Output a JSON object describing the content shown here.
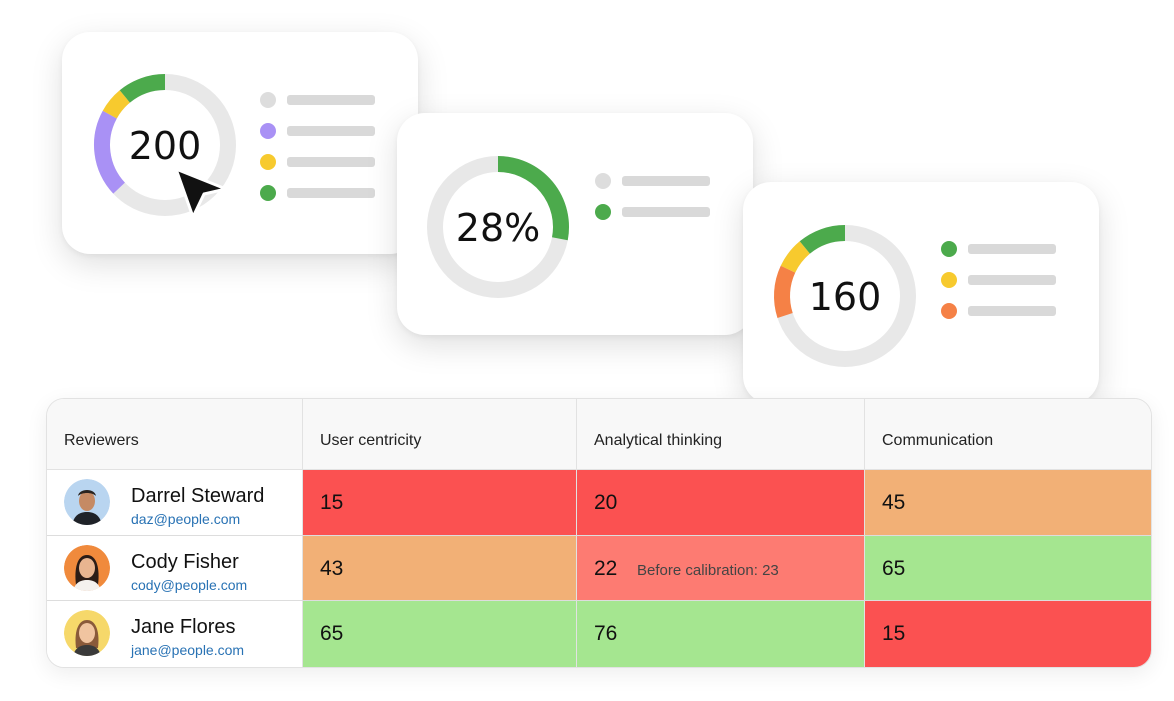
{
  "colors": {
    "track": "#e8e8e8",
    "green": "#4caa4c",
    "yellow": "#f7ca2e",
    "purple": "#a991f5",
    "orange": "#f58146",
    "legend_gray": "#d9d9d9",
    "legend_dot_gray": "#dddddd",
    "score_red": "#fb5151",
    "score_pink": "#fd7b72",
    "score_orange": "#f2b076",
    "score_green": "#a5e690",
    "email_blue": "#2872b4"
  },
  "cursor_icon": "arrow-cursor-icon",
  "cards": [
    {
      "value": "200",
      "segments": [
        {
          "color": "purple",
          "fraction": 0.2
        },
        {
          "color": "yellow",
          "fraction": 0.06
        },
        {
          "color": "green",
          "fraction": 0.11
        }
      ],
      "legend": [
        "gray",
        "purple",
        "yellow",
        "green"
      ]
    },
    {
      "value": "28%",
      "segments": [
        {
          "color": "green",
          "fraction": 0.28
        }
      ],
      "legend": [
        "gray",
        "green"
      ]
    },
    {
      "value": "160",
      "segments": [
        {
          "color": "orange",
          "fraction": 0.12
        },
        {
          "color": "yellow",
          "fraction": 0.07
        },
        {
          "color": "green",
          "fraction": 0.11
        }
      ],
      "legend": [
        "green",
        "yellow",
        "orange"
      ]
    }
  ],
  "table": {
    "headers": [
      "Reviewers",
      "User centricity",
      "Analytical thinking",
      "Communication"
    ],
    "rows": [
      {
        "name": "Darrel Steward",
        "email": "daz@people.com",
        "avatar_icon": "avatar-darrel",
        "scores": [
          {
            "value": "15",
            "level": "red"
          },
          {
            "value": "20",
            "level": "red"
          },
          {
            "value": "45",
            "level": "orange"
          }
        ]
      },
      {
        "name": "Cody Fisher",
        "email": "cody@people.com",
        "avatar_icon": "avatar-cody",
        "scores": [
          {
            "value": "43",
            "level": "orange"
          },
          {
            "value": "22",
            "level": "pink",
            "note": "Before calibration: 23"
          },
          {
            "value": "65",
            "level": "green"
          }
        ]
      },
      {
        "name": "Jane Flores",
        "email": "jane@people.com",
        "avatar_icon": "avatar-jane",
        "scores": [
          {
            "value": "65",
            "level": "green"
          },
          {
            "value": "76",
            "level": "green"
          },
          {
            "value": "15",
            "level": "red"
          }
        ]
      }
    ]
  }
}
